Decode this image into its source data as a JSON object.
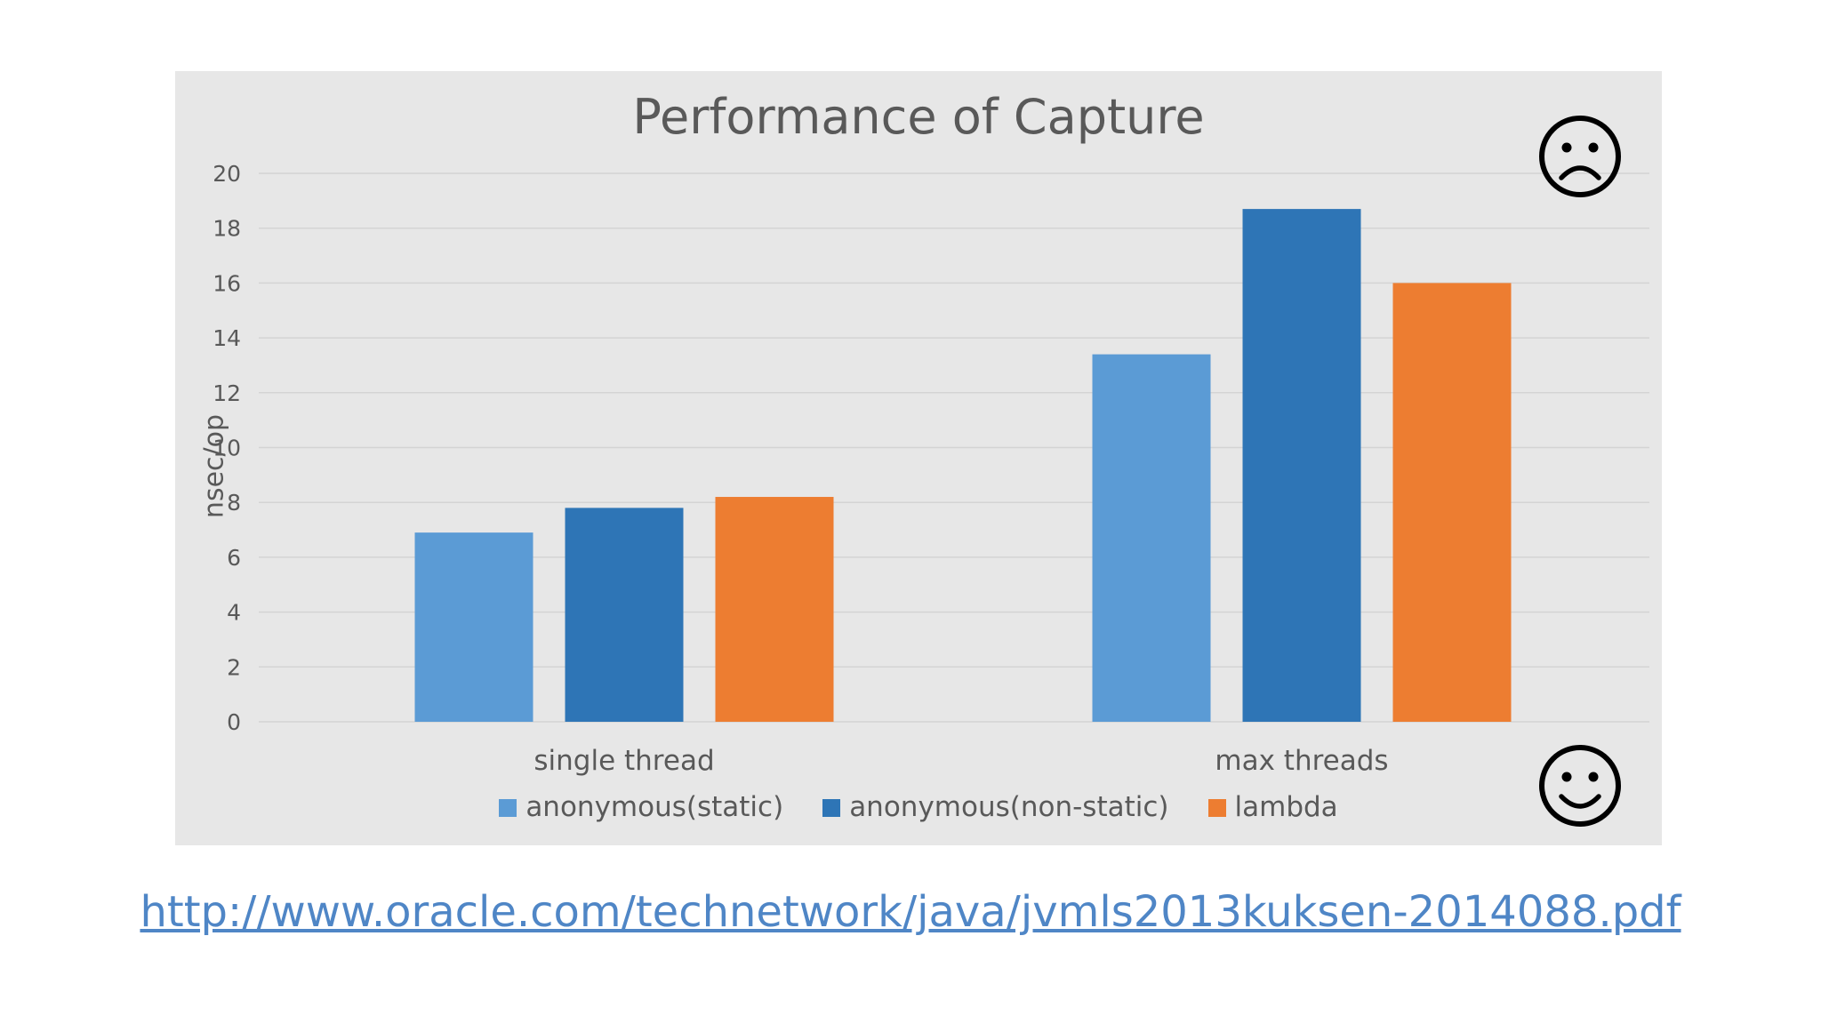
{
  "chart_data": {
    "type": "bar",
    "title": "Performance of Capture",
    "ylabel": "nsec/op",
    "xlabel": "",
    "categories": [
      "single thread",
      "max threads"
    ],
    "series": [
      {
        "name": "anonymous(static)",
        "color": "#5b9bd5",
        "values": [
          6.9,
          13.4
        ]
      },
      {
        "name": "anonymous(non-static)",
        "color": "#2e75b6",
        "values": [
          7.8,
          18.7
        ]
      },
      {
        "name": "lambda",
        "color": "#ed7d31",
        "values": [
          8.2,
          16.0
        ]
      }
    ],
    "ylim": [
      0,
      20
    ],
    "yticks": [
      0,
      2,
      4,
      6,
      8,
      10,
      12,
      14,
      16,
      18,
      20
    ],
    "grid": true,
    "legend_position": "bottom"
  },
  "icons": {
    "top_right": "frowning-face-icon",
    "bottom_right": "smiling-face-icon"
  },
  "source_link": "http://www.oracle.com/technetwork/java/jvmls2013kuksen-2014088.pdf"
}
